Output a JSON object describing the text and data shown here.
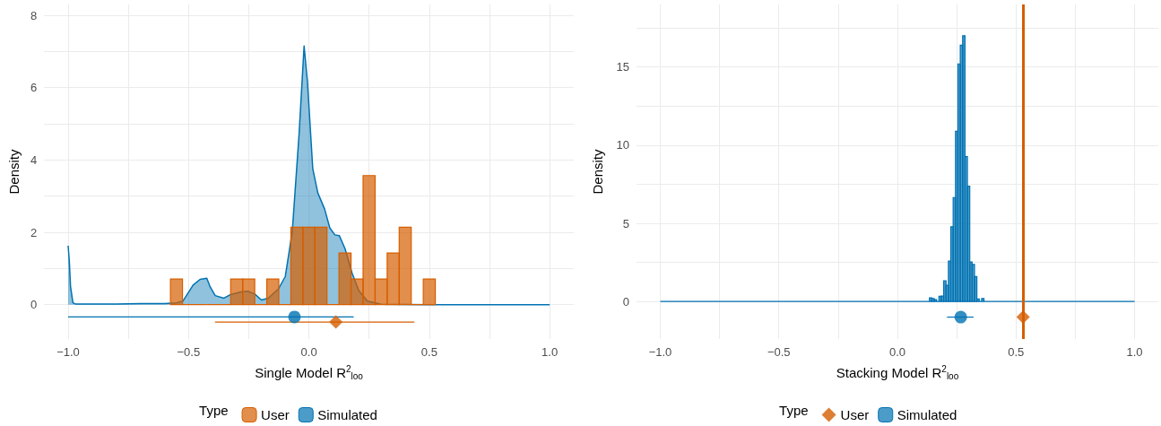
{
  "chart_data": [
    {
      "type": "histogram",
      "xlabel": "Single Model R$^{2}$$_{loo}$",
      "ylabel": "Density",
      "legend_title": "Type",
      "legend": "bottom",
      "grid": true,
      "xlim": [
        -1.1,
        1.1
      ],
      "xticks": [
        {
          "value": -1,
          "label": "−1.0"
        },
        {
          "value": -0.75,
          "label": null
        },
        {
          "value": -0.5,
          "label": "−0.5"
        },
        {
          "value": -0.25,
          "label": null
        },
        {
          "value": 0,
          "label": "0.0"
        },
        {
          "value": 0.25,
          "label": null
        },
        {
          "value": 0.5,
          "label": "0.5"
        },
        {
          "value": 0.75,
          "label": null
        },
        {
          "value": 1,
          "label": "1.0"
        }
      ],
      "ylim": [
        -0.95,
        8.3
      ],
      "yticks": [
        0,
        {
          "value": 1,
          "label": null
        },
        2,
        {
          "value": 3,
          "label": null
        },
        4,
        {
          "value": 5,
          "label": null
        },
        6,
        {
          "value": 7,
          "label": null
        },
        8
      ],
      "series": [
        {
          "name": "User",
          "color": "#d55e00",
          "bins": [
            -0.575,
            -0.525,
            -0.475,
            -0.425,
            -0.375,
            -0.325,
            -0.275,
            -0.225,
            -0.175,
            -0.125,
            -0.075,
            -0.025,
            0.025,
            0.075,
            0.125,
            0.175,
            0.225,
            0.275,
            0.325,
            0.375,
            0.425,
            0.475,
            0.525
          ],
          "values": [
            0.71,
            0,
            0,
            0,
            0,
            0.71,
            0.71,
            0,
            0.71,
            0,
            2.14,
            2.14,
            2.14,
            0,
            1.43,
            0.71,
            3.57,
            0.71,
            1.43,
            2.14,
            0,
            0.71
          ]
        },
        {
          "name": "Simulated",
          "type": "area",
          "color": "#0072b2",
          "x": [
            -1,
            -0.995,
            -0.99,
            -0.98,
            -0.97,
            -0.9,
            -0.8,
            -0.7,
            -0.6,
            -0.55,
            -0.523,
            -0.481,
            -0.452,
            -0.424,
            -0.41,
            -0.389,
            -0.353,
            -0.325,
            -0.282,
            -0.254,
            -0.226,
            -0.197,
            -0.169,
            -0.126,
            -0.098,
            -0.069,
            -0.041,
            -0.02,
            -0.006,
            0.016,
            0.037,
            0.065,
            0.087,
            0.108,
            0.126,
            0.15,
            0.179,
            0.207,
            0.243,
            0.299,
            0.5,
            0.8,
            1
          ],
          "values": [
            1.63,
            1.2,
            0.5,
            0.05,
            0.02,
            0.02,
            0.02,
            0.03,
            0.03,
            0.05,
            0.1,
            0.54,
            0.7,
            0.73,
            0.49,
            0.25,
            0.18,
            0.28,
            0.35,
            0.37,
            0.3,
            0.13,
            0.18,
            0.44,
            0.78,
            2.03,
            4.7,
            7.15,
            6.16,
            3.76,
            3.09,
            2.65,
            2.12,
            1.93,
            1.91,
            1.55,
            0.88,
            0.39,
            0.1,
            0.01,
            0,
            0,
            0
          ]
        },
        {
          "type": "scatter",
          "color": "#0072b2",
          "marker": "circle",
          "x": [
            -0.06
          ],
          "values": [
            -0.34
          ],
          "xerrors": [
            [
              -1.0,
              0.186
            ]
          ]
        },
        {
          "type": "scatter",
          "color": "#d55e00",
          "marker": "diamond",
          "x": [
            0.112
          ],
          "values": [
            -0.48
          ],
          "xerrors": [
            [
              -0.39,
              0.438
            ]
          ]
        }
      ]
    },
    {
      "type": "histogram",
      "xlabel": "Stacking Model R$^{2}$$_{loo}$",
      "ylabel": "Density",
      "legend_title": "Type",
      "legend": "bottom",
      "grid": true,
      "xlim": [
        -1.1,
        1.1
      ],
      "xticks": [
        {
          "value": -1,
          "label": "−1.0"
        },
        {
          "value": -0.75,
          "label": null
        },
        {
          "value": -0.5,
          "label": "−0.5"
        },
        {
          "value": -0.25,
          "label": null
        },
        {
          "value": 0,
          "label": "0.0"
        },
        {
          "value": 0.25,
          "label": null
        },
        {
          "value": 0.5,
          "label": "0.5"
        },
        {
          "value": 0.75,
          "label": null
        },
        {
          "value": 1,
          "label": "1.0"
        }
      ],
      "ylim": [
        -2.4,
        19
      ],
      "yticks": [
        0,
        {
          "value": 2.5,
          "label": null
        },
        5,
        {
          "value": 7.5,
          "label": null
        },
        10,
        {
          "value": 12.5,
          "label": null
        },
        15,
        {
          "value": 17.5,
          "label": null
        }
      ],
      "ref_lines": [
        {
          "axis": "x",
          "value": 0.53,
          "color": "#d55e00"
        }
      ],
      "series": [
        {
          "type": "scatter",
          "name": "User",
          "color": "#d55e00",
          "marker": "diamond",
          "x": [
            0.53
          ],
          "values": [
            -1
          ]
        },
        {
          "name": "Simulated",
          "color": "#0072b2",
          "bins": [
            -1,
            0.135,
            0.145,
            0.155,
            0.165,
            0.175,
            0.185,
            0.195,
            0.205,
            0.215,
            0.225,
            0.235,
            0.245,
            0.255,
            0.265,
            0.275,
            0.285,
            0.295,
            0.305,
            0.315,
            0.325,
            0.335,
            0.345,
            0.355,
            0.365,
            1
          ],
          "values": [
            0,
            0.23,
            0.19,
            0.12,
            0,
            0.33,
            0.35,
            1.33,
            1.03,
            2.58,
            4.78,
            6.65,
            10.89,
            15.2,
            16.4,
            17,
            9.27,
            7.38,
            2.53,
            2.37,
            1.59,
            0.16,
            0,
            0.19,
            0
          ]
        },
        {
          "type": "scatter",
          "color": "#0072b2",
          "marker": "circle",
          "x": [
            0.267
          ],
          "values": [
            -1
          ],
          "xerrors": [
            [
              0.209,
              0.321
            ]
          ]
        }
      ]
    }
  ]
}
